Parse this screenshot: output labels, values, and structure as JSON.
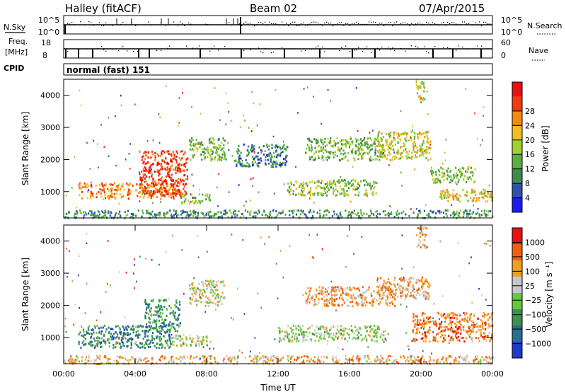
{
  "header": {
    "station": "Halley (fitACF)",
    "beam": "Beam 02",
    "date": "07/Apr/2015"
  },
  "top_panels": {
    "nsky_label": "N.Sky",
    "nsky_ticks": [
      "10^5",
      "10^0"
    ],
    "nsearch_label": "N.Search",
    "nsearch_ticks": [
      "10^5",
      "10^0"
    ],
    "freq_label": "Freq.",
    "freq_unit": "[MHz]",
    "freq_ticks": [
      "18",
      "8"
    ],
    "nave_label": "Nave",
    "nave_ticks": [
      "60",
      "0"
    ],
    "cpid_label": "CPID",
    "cpid_value": "normal (fast) 151"
  },
  "chart_data": [
    {
      "type": "heatmap",
      "name": "power",
      "ylabel": "Slant Range [km]",
      "xlabel": "",
      "yticks": [
        "1000",
        "2000",
        "3000",
        "4000"
      ],
      "ylim": [
        180,
        4500
      ],
      "xlim": [
        0,
        24
      ],
      "colorbar": {
        "label": "Power [dB]",
        "ticks": [
          "4",
          "8",
          "12",
          "16",
          "20",
          "24",
          "28"
        ],
        "colors": [
          "#1c1cf0",
          "#3050b0",
          "#3c8c50",
          "#58b040",
          "#a0d030",
          "#f0c020",
          "#f08c10",
          "#f03c10",
          "#e81010"
        ],
        "range": [
          0,
          32
        ]
      },
      "regions": [
        {
          "x0": 0.8,
          "x1": 6.6,
          "y0": 800,
          "y1": 1300,
          "level": 0.72
        },
        {
          "x0": 4.2,
          "x1": 6.9,
          "y0": 900,
          "y1": 2300,
          "level": 0.88
        },
        {
          "x0": 6.5,
          "x1": 8.2,
          "y0": 650,
          "y1": 950,
          "level": 0.45
        },
        {
          "x0": 7.0,
          "x1": 9.2,
          "y0": 2000,
          "y1": 2700,
          "level": 0.42
        },
        {
          "x0": 9.5,
          "x1": 12.5,
          "y0": 1800,
          "y1": 2500,
          "level": 0.25
        },
        {
          "x0": 12.5,
          "x1": 17.5,
          "y0": 900,
          "y1": 1400,
          "level": 0.45
        },
        {
          "x0": 13.5,
          "x1": 18.0,
          "y0": 2000,
          "y1": 2700,
          "level": 0.4
        },
        {
          "x0": 17.5,
          "x1": 20.5,
          "y0": 2000,
          "y1": 2900,
          "level": 0.55
        },
        {
          "x0": 20.5,
          "x1": 23.0,
          "y0": 1300,
          "y1": 1800,
          "level": 0.4
        },
        {
          "x0": 21.0,
          "x1": 24.0,
          "y0": 700,
          "y1": 1100,
          "level": 0.6
        },
        {
          "x0": 0.0,
          "x1": 24.0,
          "y0": 200,
          "y1": 450,
          "level": 0.3
        },
        {
          "x0": 19.7,
          "x1": 20.3,
          "y0": 3800,
          "y1": 4500,
          "level": 0.55
        }
      ]
    },
    {
      "type": "heatmap",
      "name": "velocity",
      "ylabel": "Slant Range [km]",
      "xlabel": "Time UT",
      "xticks": [
        "00:00",
        "04:00",
        "08:00",
        "12:00",
        "16:00",
        "20:00",
        "00:00"
      ],
      "yticks": [
        "1000",
        "2000",
        "3000",
        "4000"
      ],
      "ylim": [
        180,
        4500
      ],
      "xlim": [
        0,
        24
      ],
      "colorbar": {
        "label": "Velocity [m s⁻¹]",
        "ticks": [
          "1000",
          "500",
          "100",
          "25",
          "−25",
          "−100",
          "−500",
          "−1000"
        ],
        "colors": [
          "#1c3cc8",
          "#2a6e90",
          "#3c9250",
          "#66c83c",
          "#c8c8c8",
          "#f0a020",
          "#f06010",
          "#e81010"
        ],
        "range": [
          -1000,
          1000
        ]
      },
      "regions": [
        {
          "x0": 0.8,
          "x1": 6.0,
          "y0": 700,
          "y1": 1400,
          "level": 0.25
        },
        {
          "x0": 4.5,
          "x1": 6.5,
          "y0": 1200,
          "y1": 2200,
          "level": 0.3
        },
        {
          "x0": 6.0,
          "x1": 8.0,
          "y0": 750,
          "y1": 1100,
          "level": 0.5
        },
        {
          "x0": 7.0,
          "x1": 9.0,
          "y0": 2000,
          "y1": 2800,
          "level": 0.55
        },
        {
          "x0": 12.0,
          "x1": 18.0,
          "y0": 900,
          "y1": 1400,
          "level": 0.5
        },
        {
          "x0": 13.5,
          "x1": 18.5,
          "y0": 2000,
          "y1": 2600,
          "level": 0.7
        },
        {
          "x0": 17.5,
          "x1": 20.5,
          "y0": 2200,
          "y1": 2900,
          "level": 0.7
        },
        {
          "x0": 19.5,
          "x1": 24.0,
          "y0": 900,
          "y1": 1800,
          "level": 0.78
        },
        {
          "x0": 0.0,
          "x1": 24.0,
          "y0": 200,
          "y1": 450,
          "level": 0.65
        },
        {
          "x0": 19.7,
          "x1": 20.3,
          "y0": 3800,
          "y1": 4500,
          "level": 0.7
        }
      ]
    }
  ]
}
